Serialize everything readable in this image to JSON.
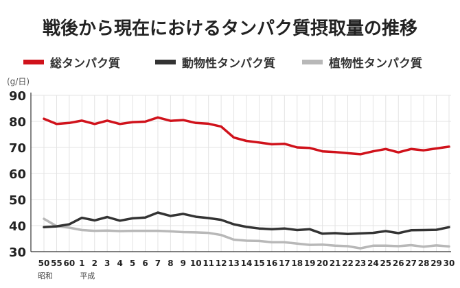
{
  "title_main": "戦後から現在における",
  "title_sub": "タンパク質摂取量の推移",
  "unit": "(g/日)",
  "colors": {
    "total": "#d0121b",
    "animal": "#333333",
    "plant": "#b8b8b8",
    "grid": "#e3e3e3",
    "axis": "#333333"
  },
  "chart_data": {
    "type": "line",
    "title": "戦後から現在におけるタンパク質摂取量の推移",
    "ylabel": "(g/日)",
    "ylim": [
      30,
      90
    ],
    "yticks": [
      30,
      40,
      50,
      60,
      70,
      80,
      90
    ],
    "grid": true,
    "legend_position": "top",
    "x": [
      "50",
      "55",
      "60",
      "1",
      "2",
      "3",
      "4",
      "5",
      "6",
      "7",
      "8",
      "9",
      "10",
      "11",
      "12",
      "13",
      "14",
      "15",
      "16",
      "17",
      "18",
      "19",
      "20",
      "21",
      "22",
      "23",
      "24",
      "25",
      "26",
      "27",
      "28",
      "29",
      "30"
    ],
    "era_labels": [
      {
        "at": "50",
        "text": "昭和"
      },
      {
        "at": "1",
        "text": "平成"
      }
    ],
    "series": [
      {
        "name": "総タンパク質",
        "color": "#d0121b",
        "values": [
          81.0,
          79.0,
          79.4,
          80.3,
          79.0,
          80.3,
          79.0,
          79.7,
          79.9,
          81.5,
          80.2,
          80.5,
          79.4,
          79.1,
          78.0,
          73.8,
          72.5,
          71.9,
          71.2,
          71.4,
          70.0,
          69.8,
          68.5,
          68.2,
          67.8,
          67.4,
          68.5,
          69.4,
          68.1,
          69.4,
          68.9,
          69.6,
          70.3
        ]
      },
      {
        "name": "動物性タンパク質",
        "color": "#333333",
        "values": [
          39.4,
          39.7,
          40.5,
          43.0,
          42.0,
          43.3,
          41.9,
          42.8,
          43.1,
          45.0,
          43.7,
          44.5,
          43.4,
          42.9,
          42.2,
          40.5,
          39.5,
          38.9,
          38.6,
          38.9,
          38.3,
          38.6,
          36.9,
          37.1,
          36.8,
          37.0,
          37.2,
          37.9,
          37.1,
          38.2,
          38.3,
          38.4,
          39.4
        ]
      },
      {
        "name": "植物性タンパク質",
        "color": "#b8b8b8",
        "values": [
          42.6,
          39.8,
          39.2,
          38.3,
          38.0,
          38.1,
          37.9,
          38.0,
          38.0,
          38.0,
          37.8,
          37.5,
          37.4,
          37.2,
          36.4,
          34.6,
          34.2,
          34.1,
          33.6,
          33.6,
          33.1,
          32.6,
          32.7,
          32.3,
          32.1,
          31.3,
          32.3,
          32.3,
          32.1,
          32.5,
          31.9,
          32.4,
          32.0
        ]
      }
    ]
  }
}
